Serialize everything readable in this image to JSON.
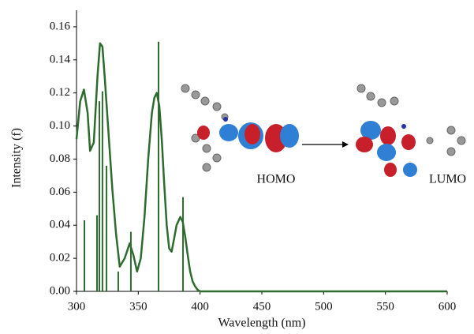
{
  "chart_data": {
    "type": "line",
    "x_label": "Wavelength (nm)",
    "y_label": "Intensity (f)",
    "xlim": [
      300,
      600
    ],
    "xticks": [
      300,
      350,
      400,
      450,
      500,
      550,
      600
    ],
    "ylim": [
      0,
      0.17
    ],
    "yticks": [
      {
        "value": 0,
        "label": "0.00"
      },
      {
        "value": 0.02,
        "label": "0.02"
      },
      {
        "value": 0.04,
        "label": "0.04"
      },
      {
        "value": 0.06,
        "label": "0.06"
      },
      {
        "value": 0.08,
        "label": "0.08"
      },
      {
        "value": 0.1,
        "label": "0.10"
      },
      {
        "value": 0.12,
        "label": "0.12"
      },
      {
        "value": 0.14,
        "label": "0.14"
      },
      {
        "value": 0.16,
        "label": "0.16"
      }
    ],
    "color": "#2e6b2e",
    "envelope": {
      "x": [
        300,
        303,
        306,
        309,
        311,
        314,
        317,
        319,
        321,
        323,
        326,
        329,
        332,
        335,
        339,
        343,
        346,
        349,
        352,
        355,
        358,
        361,
        363,
        365,
        367,
        369,
        371,
        373,
        375,
        377,
        379,
        381,
        384,
        386,
        388,
        390,
        392,
        394,
        396,
        398,
        400,
        450,
        500,
        550,
        600
      ],
      "values": [
        0.092,
        0.115,
        0.122,
        0.108,
        0.085,
        0.09,
        0.13,
        0.15,
        0.148,
        0.128,
        0.095,
        0.062,
        0.035,
        0.015,
        0.02,
        0.029,
        0.022,
        0.012,
        0.02,
        0.045,
        0.08,
        0.108,
        0.117,
        0.12,
        0.112,
        0.092,
        0.065,
        0.04,
        0.026,
        0.024,
        0.032,
        0.04,
        0.045,
        0.042,
        0.033,
        0.022,
        0.012,
        0.006,
        0.003,
        0.001,
        0,
        0,
        0,
        0,
        0
      ]
    },
    "sticks": {
      "x": [
        306.4,
        316.6,
        318.5,
        321,
        324.3,
        333.8,
        344,
        366.4,
        386.2
      ],
      "values": [
        0.043,
        0.046,
        0.115,
        0.121,
        0.076,
        0.012,
        0.036,
        0.151,
        0.057
      ]
    },
    "annotations": [
      "HOMO",
      "LUMO"
    ]
  }
}
